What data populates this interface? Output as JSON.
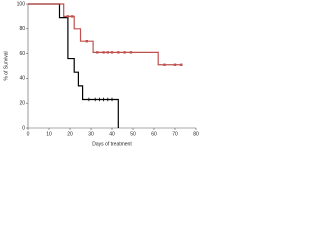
{
  "chart_data": {
    "type": "step",
    "xlabel": "Days of treatment",
    "ylabel": "% of Survival",
    "xlim": [
      0,
      80
    ],
    "xticks": [
      0,
      10,
      20,
      30,
      40,
      50,
      60,
      70,
      80
    ],
    "ylim": [
      0,
      100
    ],
    "yticks": [
      0,
      20,
      40,
      60,
      80,
      100
    ],
    "series": [
      {
        "color": "#000000",
        "marker": "tick",
        "x": [
          0,
          15,
          15,
          19,
          19,
          22,
          22,
          24,
          24,
          26,
          26,
          43,
          43
        ],
        "values": [
          100,
          100,
          89,
          89,
          56,
          56,
          45,
          45,
          34,
          34,
          23,
          23,
          0
        ],
        "censor_x": [
          29,
          32,
          34,
          36,
          38,
          40
        ],
        "censor_values": [
          23,
          23,
          23,
          23,
          23,
          23
        ]
      },
      {
        "color": "#c0504d",
        "marker": "square",
        "x": [
          0,
          17,
          17,
          22,
          22,
          25,
          25,
          31,
          31,
          62,
          62,
          73
        ],
        "values": [
          100,
          100,
          90,
          90,
          80,
          80,
          70,
          70,
          61,
          61,
          51,
          51
        ],
        "censor_x": [
          19,
          21,
          28,
          33,
          36,
          38,
          40,
          43,
          46,
          49,
          65,
          70,
          73
        ],
        "censor_values": [
          90,
          90,
          70,
          61,
          61,
          61,
          61,
          61,
          61,
          61,
          51,
          51,
          51
        ]
      }
    ]
  }
}
